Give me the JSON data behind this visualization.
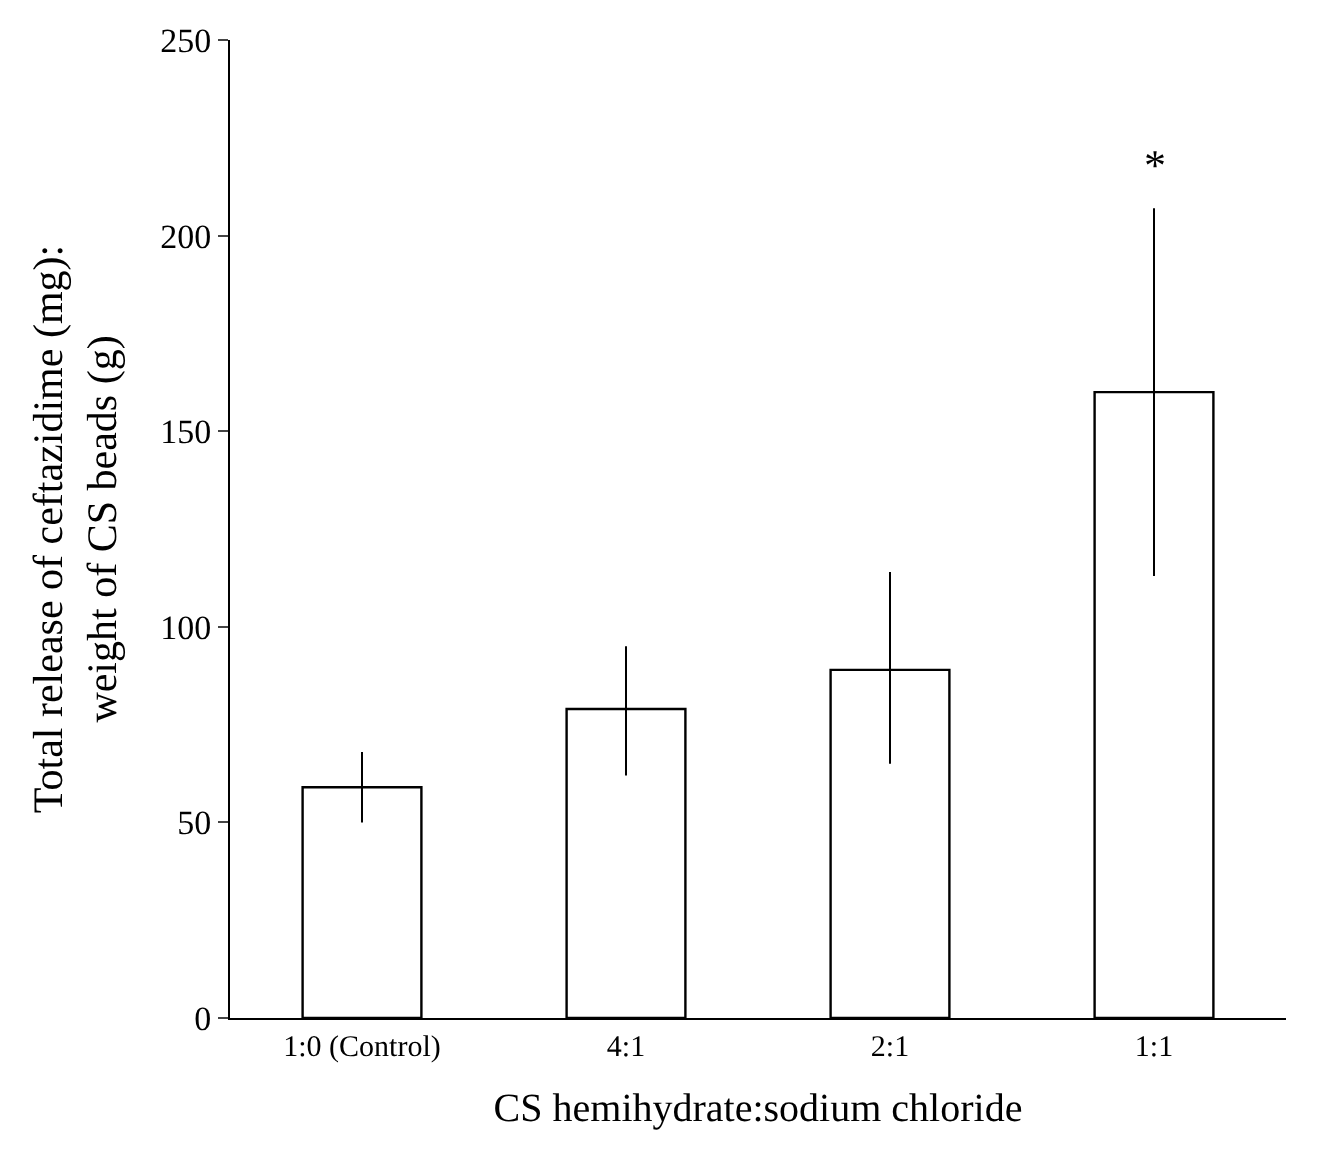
{
  "chart_data": {
    "type": "bar",
    "xlabel": "CS hemihydrate:sodium chloride",
    "ylabel": "Total release of ceftazidime (mg):\nweight of CS beads (g)",
    "categories": [
      "1:0 (Control)",
      "4:1",
      "2:1",
      "1:1"
    ],
    "values": [
      59,
      79,
      89,
      160
    ],
    "errors": [
      [
        50,
        68
      ],
      [
        62,
        95
      ],
      [
        65,
        114
      ],
      [
        113,
        207
      ]
    ],
    "color": "#ffffff",
    "ylim": [
      0,
      250
    ],
    "yticks": [
      0,
      50,
      100,
      150,
      200,
      250
    ],
    "annotations": [
      "*"
    ]
  }
}
